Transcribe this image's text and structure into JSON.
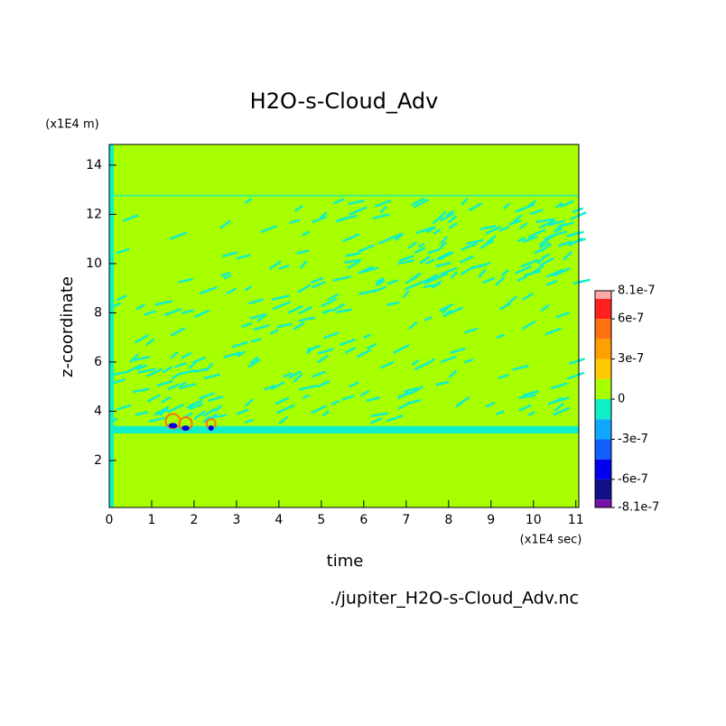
{
  "chart_data": {
    "type": "contour",
    "title": "H2O-s-Cloud_Adv",
    "x_label": "time",
    "x_unit": "(x1E4 sec)",
    "y_label": "z-coordinate",
    "y_unit": "(x1E4 m)",
    "footer": "./jupiter_H2O-s-Cloud_Adv.nc",
    "xlim": [
      0,
      11.07
    ],
    "xticks": [
      0,
      1,
      2,
      3,
      4,
      5,
      6,
      7,
      8,
      9,
      10,
      11
    ],
    "ylim": [
      0.09,
      14.84
    ],
    "yticks": [
      2,
      4,
      6,
      8,
      10,
      12,
      14
    ],
    "colorbar": {
      "levels": [
        -8.1e-07,
        -7.5e-07,
        -6e-07,
        -4.5e-07,
        -3e-07,
        -1.5e-07,
        0,
        1.5e-07,
        3e-07,
        4.5e-07,
        6e-07,
        7.5e-07,
        8.1e-07
      ],
      "colors": [
        "#7a10a8",
        "#10108a",
        "#0000ee",
        "#1060ff",
        "#10a8ff",
        "#10f0c8",
        "#a8ff00",
        "#ffc800",
        "#ffa000",
        "#ff7010",
        "#ff2020",
        "#ffa8a8"
      ],
      "ticks": [
        {
          "value": 8.1e-07,
          "label": "8.1e-7"
        },
        {
          "value": 6e-07,
          "label": "6e-7"
        },
        {
          "value": 3e-07,
          "label": "3e-7"
        },
        0,
        {
          "value": -3e-07,
          "label": "-3e-7"
        },
        {
          "value": -6e-07,
          "label": "-6e-7"
        },
        {
          "value": -8.1e-07,
          "label": "-8.1e-7"
        }
      ]
    }
  }
}
